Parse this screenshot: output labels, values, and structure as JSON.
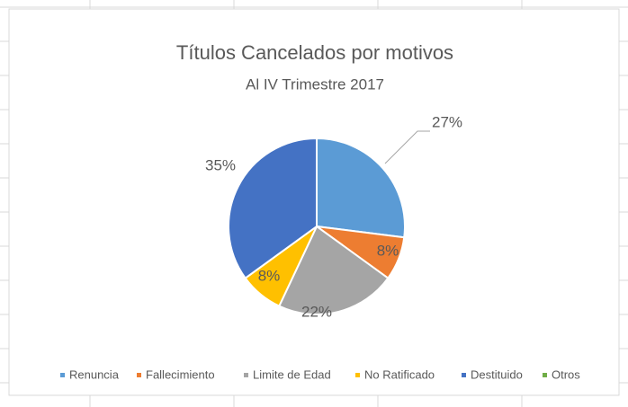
{
  "chart_data": {
    "type": "pie",
    "title": "Títulos Cancelados por motivos",
    "subtitle": "Al IV Trimestre 2017",
    "categories": [
      "Renuncia",
      "Fallecimiento",
      "Limite de Edad",
      "No Ratificado",
      "Destituido",
      "Otros"
    ],
    "values": [
      27,
      8,
      22,
      8,
      35,
      0
    ],
    "value_labels": [
      "27%",
      "8%",
      "22%",
      "8%",
      "35%",
      null
    ],
    "colors": [
      "#5b9bd5",
      "#ed7d31",
      "#a5a5a5",
      "#ffc000",
      "#4472c4",
      "#70ad47"
    ],
    "legend": "bottom"
  }
}
